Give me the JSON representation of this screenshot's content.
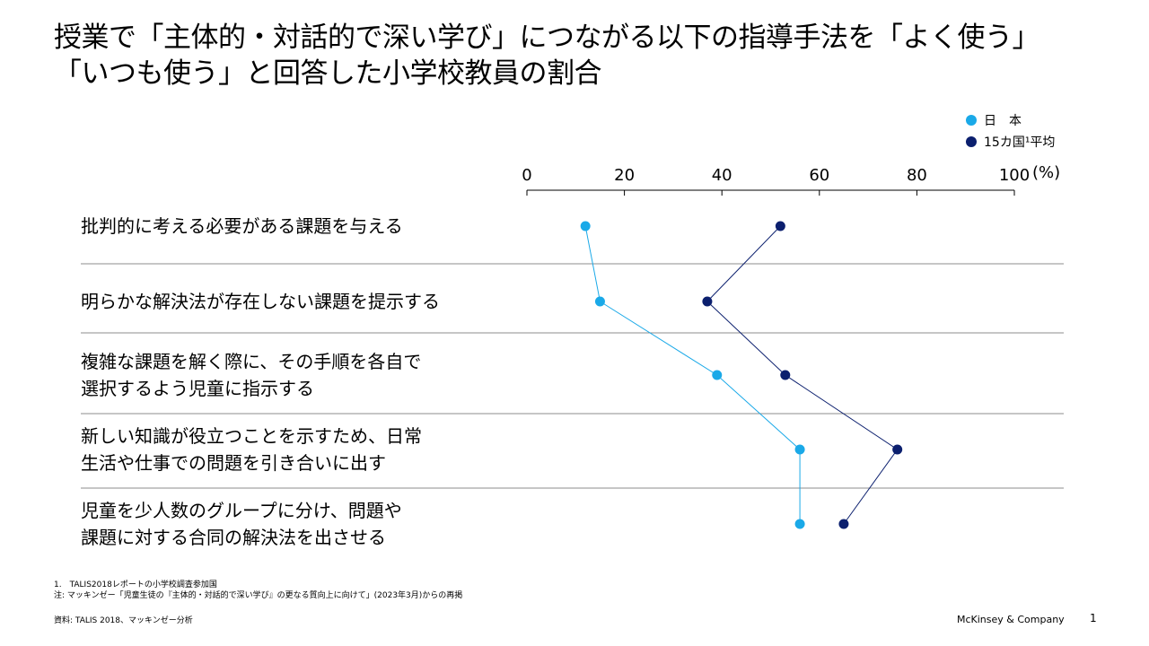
{
  "title": "授業で「主体的・対話的で深い学び」につながる以下の指導手法を「よく使う」\n「いつも使う」と回答した小学校教員の割合",
  "legend": {
    "japan": "日　本",
    "avg": "15カ国¹平均"
  },
  "unit": "(%)",
  "colors": {
    "japan": "#1AA9E8",
    "avg": "#0B1F6E",
    "divider": "#8C8C8C",
    "axis": "#000000"
  },
  "chart_data": {
    "type": "scatter",
    "orientation": "horizontal-dot-plot",
    "title": "授業で「主体的・対話的で深い学び」につながる以下の指導手法を「よく使う」「いつも使う」と回答した小学校教員の割合",
    "xlim": [
      0,
      100
    ],
    "xticks": [
      0,
      20,
      40,
      60,
      80,
      100
    ],
    "xlabel": "(%)",
    "categories": [
      "批判的に考える必要がある課題を与える",
      "明らかな解決法が存在しない課題を提示する",
      "複雑な課題を解く際に、その手順を各自で\n選択するよう児童に指示する",
      "新しい知識が役立つことを示すため、日常\n生活や仕事での問題を引き合いに出す",
      "児童を少人数のグループに分け、問題や\n課題に対する合同の解決法を出させる"
    ],
    "series": [
      {
        "name": "日　本",
        "values": [
          12,
          15,
          39,
          56,
          56
        ]
      },
      {
        "name": "15カ国¹平均",
        "values": [
          52,
          37,
          53,
          76,
          65
        ]
      }
    ],
    "legend_position": "top-right"
  },
  "footnotes": [
    "1.　TALIS2018レポートの小学校調査参加国",
    "注: マッキンゼー「児童生徒の『主体的・対話的で深い学び』の更なる質向上に向けて」(2023年3月)からの再掲"
  ],
  "source": "資料: TALIS 2018、マッキンゼー分析",
  "brand": "McKinsey & Company",
  "page_number": "1"
}
